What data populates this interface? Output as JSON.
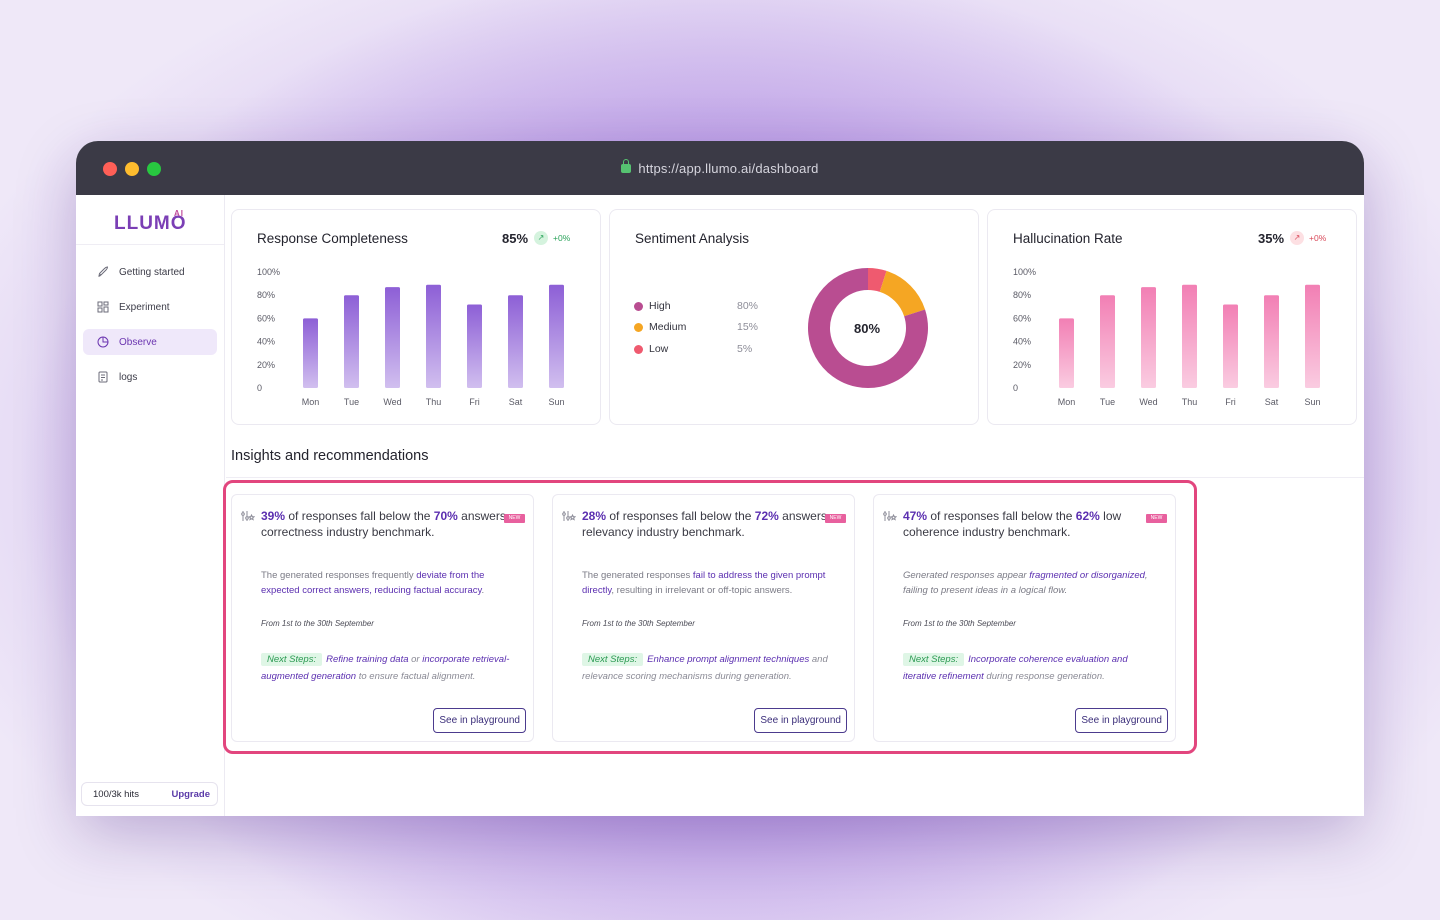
{
  "browser": {
    "url": "https://app.llumo.ai/dashboard"
  },
  "sidebar": {
    "logo": "LLUMO",
    "logo_mark": "AI",
    "items": [
      {
        "label": "Getting started",
        "icon": "rocket-icon"
      },
      {
        "label": "Experiment",
        "icon": "grid-icon"
      },
      {
        "label": "Observe",
        "icon": "pie-icon",
        "active": true
      },
      {
        "label": "logs",
        "icon": "document-icon"
      }
    ],
    "usage": {
      "hits": "100/3k hits",
      "upgrade": "Upgrade"
    }
  },
  "cards": {
    "completeness": {
      "title": "Response Completeness",
      "metric": "85%",
      "delta": "+0%",
      "trend_icon": "arrow-up-right-icon"
    },
    "sentiment": {
      "title": "Sentiment Analysis",
      "center": "80%",
      "legend": [
        {
          "label": "High",
          "value": "80%",
          "color": "#b94d91"
        },
        {
          "label": "Medium",
          "value": "15%",
          "color": "#f5a623"
        },
        {
          "label": "Low",
          "value": "5%",
          "color": "#ef5a6f"
        }
      ]
    },
    "hallucination": {
      "title": "Hallucination Rate",
      "metric": "35%",
      "delta": "+0%",
      "trend_icon": "arrow-up-right-icon"
    }
  },
  "chart_data": [
    {
      "type": "bar",
      "title": "Response Completeness",
      "categories": [
        "Mon",
        "Tue",
        "Wed",
        "Thu",
        "Fri",
        "Sat",
        "Sun"
      ],
      "values": [
        60,
        80,
        87,
        89,
        72,
        80,
        89
      ],
      "ylim": [
        0,
        100
      ],
      "yticks": [
        "100%",
        "80%",
        "60%",
        "40%",
        "20%",
        "0"
      ],
      "color": "#8d5fd6"
    },
    {
      "type": "pie",
      "title": "Sentiment Analysis",
      "labels": [
        "High",
        "Medium",
        "Low"
      ],
      "values": [
        80,
        15,
        5
      ]
    },
    {
      "type": "bar",
      "title": "Hallucination Rate",
      "categories": [
        "Mon",
        "Tue",
        "Wed",
        "Thu",
        "Fri",
        "Sat",
        "Sun"
      ],
      "values": [
        60,
        80,
        87,
        89,
        72,
        80,
        89
      ],
      "ylim": [
        0,
        100
      ],
      "yticks": [
        "100%",
        "80%",
        "60%",
        "40%",
        "20%",
        "0"
      ],
      "color": "#f27fb4"
    }
  ],
  "insights": {
    "title": "Insights and recommendations",
    "items": [
      {
        "stat": "39%",
        "mid": " of responses fall below the ",
        "bench": "70%",
        "rest": " answers correctness industry benchmark.",
        "badge": "NEW",
        "d1": "The generated responses frequently ",
        "d2": "deviate from the expected correct answers, reducing factual accuracy",
        "d3": ".",
        "date": "From 1st to the 30th September",
        "steps_label": "Next Steps:",
        "s1": "Refine training data",
        "s2": " or ",
        "s3": "incorporate retrieval-augmented generation",
        "s4": " to ensure factual alignment.",
        "button": "See in playground"
      },
      {
        "stat": "28%",
        "mid": " of responses fall below the ",
        "bench": "72%",
        "rest": " answers relevancy industry benchmark.",
        "badge": "NEW",
        "d1": "The generated responses ",
        "d2": "fail to address the given prompt directly",
        "d3": ", resulting in irrelevant or off-topic answers.",
        "date": "From 1st to the 30th September",
        "steps_label": "Next Steps:",
        "s1": "Enhance prompt alignment techniques",
        "s2": "",
        "s3": "",
        "s4": " and relevance scoring mechanisms during generation.",
        "button": "See in playground"
      },
      {
        "stat": "47%",
        "mid": " of responses fall below the ",
        "bench": "62%",
        "rest": " low coherence industry benchmark.",
        "badge": "NEW",
        "d1": "Generated responses appear ",
        "d2": "fragmented or disorganized",
        "d3": ", failing to present ideas in a logical flow.",
        "date": "From 1st to the 30th September",
        "steps_label": "Next Steps:",
        "s1": "Incorporate coherence evaluation and iterative refinement",
        "s2": "",
        "s3": "",
        "s4": " during response generation.",
        "button": "See in playground"
      }
    ]
  }
}
